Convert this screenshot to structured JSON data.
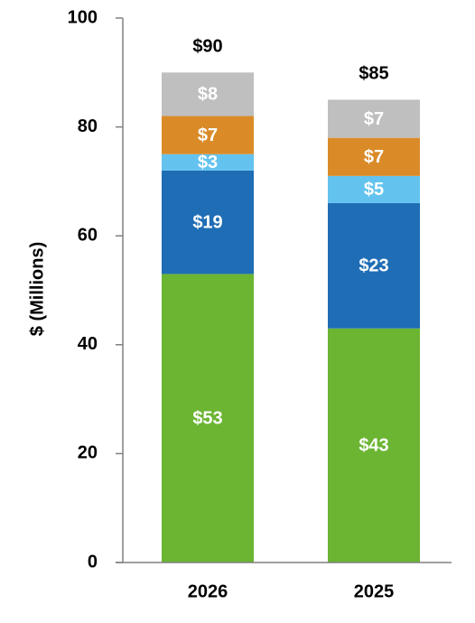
{
  "chart_data": {
    "type": "stacked-bar",
    "y_label": "$ (Millions)",
    "categories": [
      "2026",
      "2025"
    ],
    "series": [
      {
        "color": "#6bb533",
        "values": [
          53,
          43
        ],
        "value_labels": [
          "$53",
          "$43"
        ]
      },
      {
        "color": "#1f6db5",
        "values": [
          19,
          23
        ],
        "value_labels": [
          "$19",
          "$23"
        ]
      },
      {
        "color": "#63c3ee",
        "values": [
          3,
          5
        ],
        "value_labels": [
          "$3",
          "$5"
        ]
      },
      {
        "color": "#da8b28",
        "values": [
          7,
          7
        ],
        "value_labels": [
          "$7",
          "$7"
        ]
      },
      {
        "color": "#bfbfbf",
        "values": [
          8,
          7
        ],
        "value_labels": [
          "$8",
          "$7"
        ]
      }
    ],
    "totals": [
      90,
      85
    ],
    "total_labels": [
      "$90",
      "$85"
    ],
    "ylim": [
      0,
      100
    ],
    "yticks": [
      0,
      20,
      40,
      60,
      80,
      100
    ]
  }
}
